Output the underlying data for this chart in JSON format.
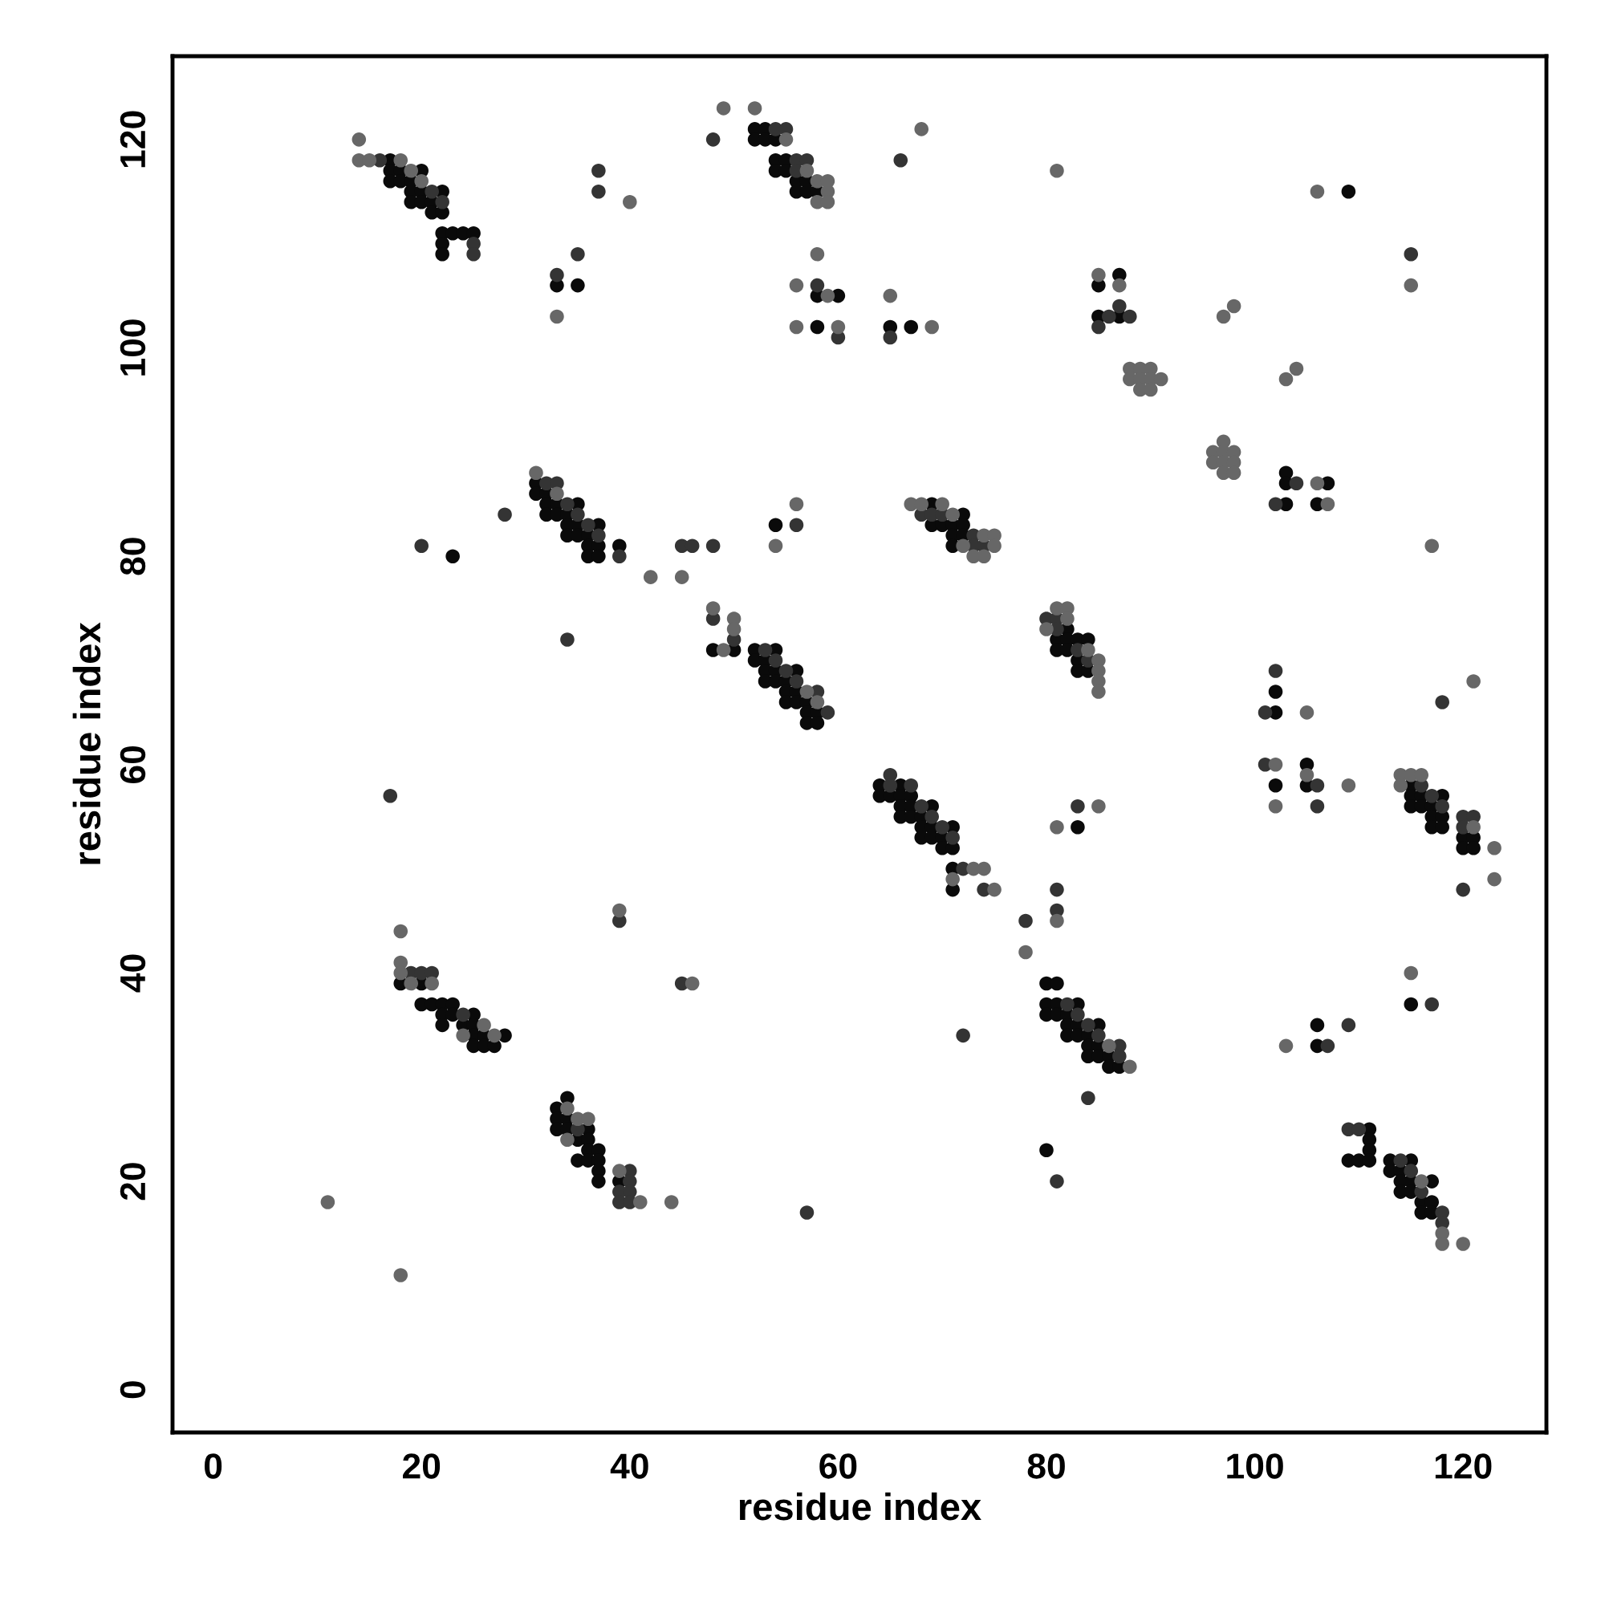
{
  "chart_data": {
    "type": "scatter",
    "xlabel": "residue index",
    "ylabel": "residue index",
    "xlim": [
      -3.9,
      128
    ],
    "ylim": [
      -4.1,
      128
    ],
    "xticks": [
      0,
      20,
      40,
      60,
      80,
      100,
      120
    ],
    "yticks": [
      0,
      20,
      40,
      60,
      80,
      100,
      120
    ],
    "marker": "circle",
    "grid": false,
    "series": [
      {
        "color": "#0a0a0a",
        "x": [
          17,
          17,
          18,
          20,
          17,
          18,
          19,
          19,
          20,
          22,
          19,
          20,
          21,
          21,
          22,
          22,
          23,
          24,
          25,
          22,
          22,
          33,
          35,
          52,
          53,
          52,
          53,
          54,
          54,
          55,
          54,
          55,
          56,
          57,
          56,
          57,
          58,
          58,
          60,
          58,
          65,
          67,
          87,
          85,
          85,
          87,
          103,
          103,
          103,
          107,
          106,
          109,
          31,
          31,
          32,
          32,
          33,
          35,
          32,
          33,
          34,
          34,
          35,
          37,
          34,
          35,
          36,
          36,
          37,
          39,
          36,
          37,
          23,
          54,
          48,
          50,
          52,
          54,
          52,
          53,
          53,
          54,
          56,
          53,
          54,
          55,
          55,
          56,
          55,
          56,
          57,
          57,
          58,
          57,
          58,
          69,
          72,
          69,
          70,
          71,
          72,
          71,
          72,
          71,
          82,
          81,
          82,
          83,
          84,
          81,
          82,
          83,
          83,
          84,
          64,
          66,
          64,
          65,
          66,
          67,
          66,
          67,
          69,
          66,
          67,
          68,
          68,
          69,
          71,
          68,
          69,
          70,
          70,
          71,
          71,
          71,
          83,
          102,
          102,
          105,
          102,
          105,
          115,
          115,
          116,
          118,
          115,
          116,
          117,
          117,
          118,
          117,
          118,
          120,
          121,
          120,
          121,
          18,
          20,
          20,
          21,
          22,
          23,
          22,
          23,
          25,
          22,
          24,
          25,
          25,
          26,
          28,
          25,
          26,
          27,
          34,
          33,
          33,
          34,
          33,
          34,
          36,
          35,
          36,
          36,
          37,
          35,
          36,
          37,
          37,
          37,
          39,
          80,
          81,
          80,
          81,
          83,
          80,
          81,
          82,
          82,
          83,
          85,
          82,
          83,
          84,
          84,
          85,
          84,
          85,
          86,
          86,
          87,
          80,
          115,
          106,
          106,
          111,
          111,
          111,
          109,
          110,
          111,
          113,
          115,
          113,
          114,
          114,
          115,
          117,
          114,
          115,
          116,
          117,
          116,
          117
        ],
        "values": [
          118,
          117,
          117,
          117,
          116,
          116,
          116,
          115,
          115,
          115,
          114,
          114,
          114,
          113,
          113,
          111,
          111,
          111,
          111,
          110,
          109,
          106,
          106,
          121,
          121,
          120,
          120,
          120,
          118,
          118,
          117,
          117,
          116,
          116,
          115,
          115,
          115,
          105,
          105,
          102,
          102,
          102,
          107,
          106,
          103,
          103,
          88,
          87,
          85,
          87,
          85,
          115,
          87,
          86,
          86,
          85,
          85,
          85,
          84,
          84,
          84,
          83,
          83,
          83,
          82,
          82,
          82,
          81,
          81,
          81,
          80,
          80,
          80,
          83,
          71,
          71,
          71,
          71,
          70,
          70,
          69,
          69,
          69,
          68,
          68,
          68,
          67,
          67,
          66,
          66,
          66,
          65,
          65,
          64,
          64,
          85,
          84,
          83,
          83,
          83,
          83,
          82,
          82,
          81,
          73,
          72,
          72,
          72,
          72,
          71,
          71,
          70,
          69,
          69,
          58,
          58,
          57,
          57,
          57,
          57,
          56,
          56,
          56,
          55,
          55,
          55,
          54,
          54,
          54,
          53,
          53,
          53,
          52,
          52,
          50,
          48,
          54,
          67,
          65,
          60,
          58,
          58,
          58,
          57,
          57,
          57,
          56,
          56,
          56,
          55,
          55,
          54,
          54,
          53,
          53,
          52,
          52,
          39,
          39,
          37,
          37,
          37,
          37,
          36,
          36,
          36,
          35,
          35,
          35,
          34,
          34,
          34,
          33,
          33,
          33,
          28,
          27,
          26,
          26,
          25,
          25,
          25,
          24,
          24,
          23,
          23,
          22,
          22,
          22,
          21,
          20,
          20,
          39,
          39,
          37,
          37,
          37,
          36,
          36,
          36,
          35,
          35,
          35,
          34,
          34,
          34,
          33,
          33,
          32,
          32,
          32,
          31,
          31,
          23,
          37,
          35,
          33,
          25,
          24,
          23,
          22,
          22,
          22,
          22,
          22,
          21,
          21,
          20,
          20,
          20,
          19,
          19,
          18,
          18,
          17,
          17
        ]
      },
      {
        "color": "#343434",
        "x": [
          16,
          21,
          22,
          25,
          25,
          37,
          37,
          35,
          33,
          48,
          54,
          55,
          56,
          57,
          56,
          58,
          60,
          66,
          65,
          87,
          86,
          88,
          85,
          102,
          104,
          115,
          32,
          33,
          34,
          35,
          36,
          37,
          39,
          28,
          20,
          34,
          17,
          45,
          46,
          48,
          48,
          50,
          56,
          53,
          54,
          55,
          56,
          58,
          59,
          68,
          69,
          70,
          73,
          73,
          74,
          80,
          81,
          81,
          83,
          84,
          65,
          65,
          67,
          68,
          69,
          70,
          71,
          72,
          74,
          83,
          81,
          81,
          78,
          102,
          101,
          101,
          106,
          106,
          118,
          116,
          117,
          118,
          120,
          121,
          120,
          120,
          19,
          20,
          21,
          24,
          39,
          45,
          35,
          40,
          40,
          39,
          40,
          39,
          40,
          57,
          72,
          82,
          83,
          84,
          85,
          87,
          87,
          84,
          81,
          117,
          107,
          109,
          109,
          110,
          114,
          115,
          116,
          118,
          118
        ],
        "values": [
          118,
          115,
          114,
          110,
          109,
          117,
          115,
          109,
          107,
          120,
          121,
          121,
          118,
          118,
          117,
          106,
          101,
          118,
          101,
          104,
          103,
          103,
          102,
          85,
          87,
          109,
          87,
          87,
          85,
          84,
          83,
          82,
          80,
          84,
          81,
          72,
          57,
          81,
          81,
          81,
          74,
          72,
          83,
          71,
          70,
          69,
          68,
          67,
          65,
          84,
          84,
          84,
          82,
          81,
          81,
          74,
          74,
          73,
          71,
          70,
          59,
          58,
          58,
          56,
          55,
          54,
          53,
          50,
          48,
          56,
          48,
          46,
          45,
          69,
          65,
          60,
          58,
          56,
          66,
          58,
          57,
          56,
          55,
          55,
          54,
          48,
          40,
          40,
          40,
          36,
          45,
          39,
          25,
          21,
          20,
          19,
          19,
          18,
          18,
          17,
          34,
          37,
          36,
          35,
          34,
          33,
          32,
          28,
          20,
          37,
          33,
          35,
          25,
          25,
          22,
          21,
          19,
          17,
          16
        ]
      },
      {
        "color": "#676767",
        "x": [
          14,
          14,
          15,
          18,
          19,
          20,
          40,
          33,
          49,
          52,
          55,
          57,
          58,
          59,
          59,
          58,
          59,
          56,
          56,
          58,
          59,
          60,
          68,
          65,
          69,
          81,
          85,
          87,
          88,
          89,
          90,
          88,
          89,
          90,
          91,
          89,
          90,
          97,
          98,
          97,
          96,
          97,
          98,
          96,
          97,
          98,
          97,
          98,
          103,
          104,
          106,
          107,
          106,
          115,
          117,
          31,
          33,
          42,
          45,
          54,
          56,
          48,
          49,
          50,
          50,
          57,
          58,
          67,
          68,
          70,
          71,
          74,
          75,
          72,
          75,
          73,
          74,
          81,
          82,
          82,
          80,
          84,
          85,
          85,
          85,
          85,
          73,
          74,
          71,
          75,
          85,
          81,
          81,
          78,
          105,
          102,
          105,
          109,
          102,
          121,
          114,
          115,
          116,
          114,
          121,
          123,
          123,
          18,
          18,
          18,
          19,
          21,
          26,
          24,
          27,
          39,
          46,
          34,
          35,
          36,
          34,
          39,
          41,
          44,
          11,
          18,
          86,
          88,
          115,
          103,
          116,
          118,
          118,
          120
        ],
        "values": [
          120,
          118,
          118,
          118,
          117,
          116,
          114,
          103,
          123,
          123,
          120,
          117,
          116,
          116,
          115,
          114,
          114,
          106,
          102,
          109,
          105,
          102,
          121,
          105,
          102,
          117,
          107,
          106,
          98,
          98,
          98,
          97,
          97,
          97,
          97,
          96,
          96,
          103,
          104,
          91,
          90,
          90,
          90,
          89,
          89,
          89,
          88,
          88,
          97,
          98,
          87,
          85,
          115,
          106,
          81,
          88,
          86,
          78,
          78,
          81,
          85,
          75,
          71,
          74,
          73,
          67,
          66,
          85,
          85,
          85,
          84,
          82,
          82,
          81,
          81,
          80,
          80,
          75,
          75,
          74,
          73,
          71,
          70,
          69,
          68,
          67,
          50,
          50,
          49,
          48,
          56,
          54,
          45,
          42,
          65,
          60,
          59,
          58,
          56,
          68,
          59,
          59,
          59,
          58,
          54,
          52,
          49,
          44,
          41,
          40,
          39,
          39,
          35,
          34,
          34,
          46,
          39,
          27,
          26,
          26,
          24,
          21,
          18,
          18,
          18,
          11,
          33,
          31,
          40,
          33,
          20,
          15,
          14,
          14
        ]
      }
    ]
  }
}
